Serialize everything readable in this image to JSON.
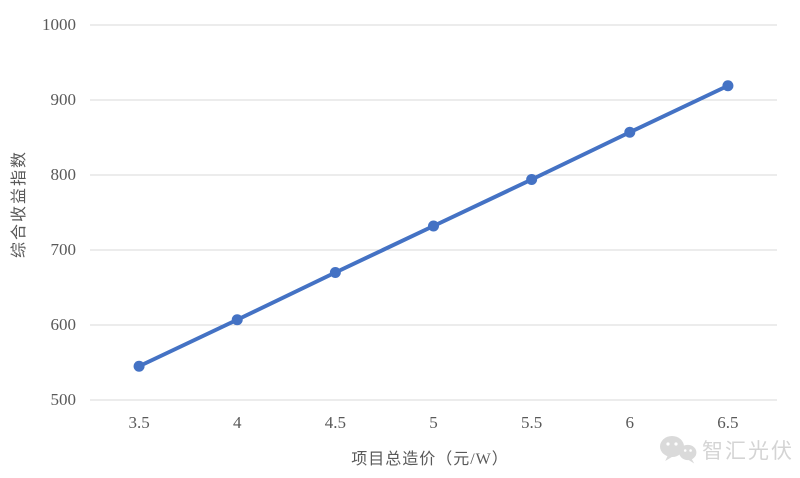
{
  "chart_data": {
    "type": "line",
    "title": "",
    "xlabel": "项目总造价（元/W）",
    "ylabel": "综合收益指数",
    "x": [
      3.5,
      4,
      4.5,
      5,
      5.5,
      6,
      6.5
    ],
    "x_tick_labels": [
      "3.5",
      "4",
      "4.5",
      "5",
      "5.5",
      "6",
      "6.5"
    ],
    "series": [
      {
        "name": "综合收益指数",
        "values": [
          545,
          607,
          670,
          732,
          794,
          857,
          919
        ]
      }
    ],
    "ylim": [
      500,
      1000
    ],
    "yticks": [
      500,
      600,
      700,
      800,
      900,
      1000
    ],
    "grid": "horizontal",
    "legend": "none",
    "marker": "circle"
  },
  "watermark": {
    "icon": "wechat-logo-icon",
    "text": "智汇光伏"
  },
  "colors": {
    "line": "#4472C4",
    "marker": "#4472C4",
    "gridline": "#d9d9d9",
    "tick_label": "#595959",
    "axis_title": "#595959",
    "watermark": "#d4d4d4",
    "background": "#ffffff"
  }
}
